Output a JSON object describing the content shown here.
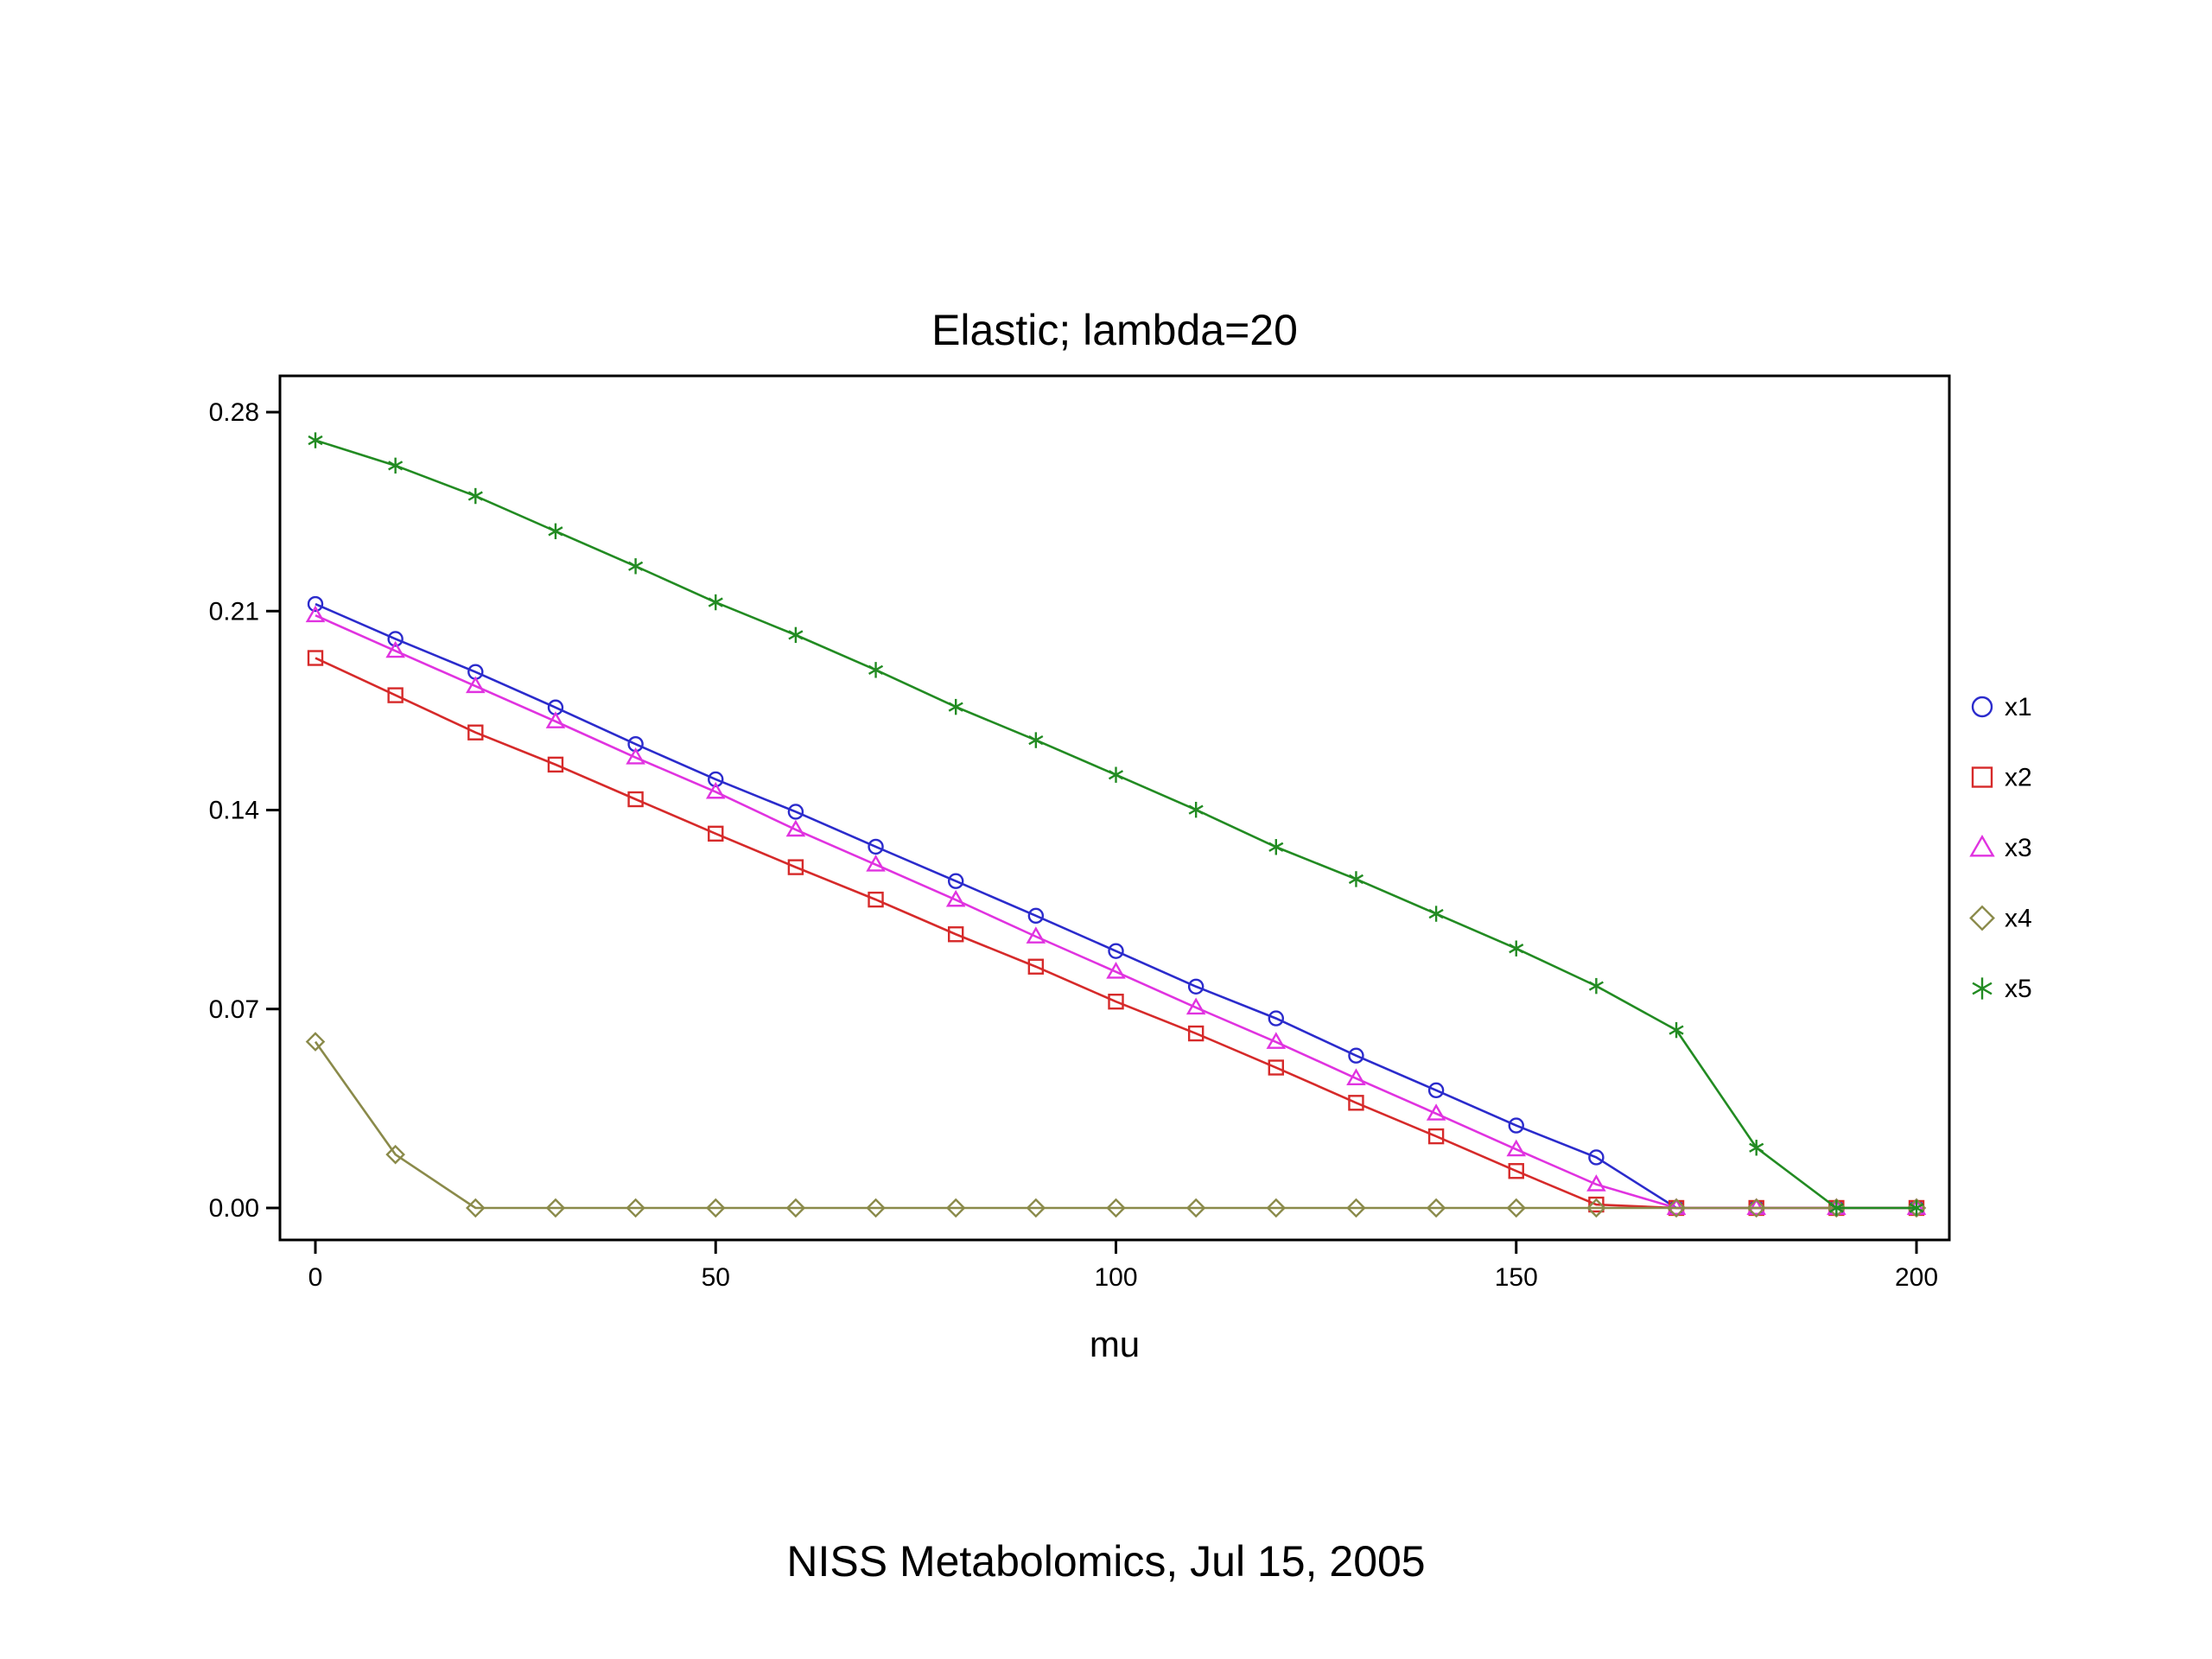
{
  "footer": {
    "text": "NISS Metabolomics, Jul 15, 2005"
  },
  "chart_data": {
    "type": "line",
    "title": "Elastic; lambda=20",
    "xlabel": "mu",
    "ylabel": "",
    "xlim": [
      0,
      200
    ],
    "ylim": [
      0,
      0.28
    ],
    "xticks": [
      0,
      50,
      100,
      150,
      200
    ],
    "xtick_labels": [
      "0",
      "50",
      "100",
      "150",
      "200"
    ],
    "yticks": [
      0.0,
      0.07,
      0.14,
      0.21,
      0.28
    ],
    "ytick_labels": [
      "0.00",
      "0.07",
      "0.14",
      "0.21",
      "0.28"
    ],
    "grid": false,
    "legend_position": "right",
    "x": [
      0,
      10,
      20,
      30,
      40,
      50,
      60,
      70,
      80,
      90,
      100,
      110,
      120,
      130,
      140,
      150,
      160,
      170,
      180,
      190,
      200
    ],
    "series": [
      {
        "name": "x1",
        "color": "#2b2bcc",
        "marker": "circle",
        "values": [
          0.2125,
          0.2002,
          0.1886,
          0.1761,
          0.1632,
          0.1508,
          0.1394,
          0.1271,
          0.115,
          0.1028,
          0.0904,
          0.0779,
          0.0667,
          0.0536,
          0.0414,
          0.029,
          0.0178,
          0.0,
          0.0,
          0.0,
          0.0
        ]
      },
      {
        "name": "x2",
        "color": "#d62a2a",
        "marker": "square",
        "values": [
          0.1935,
          0.1804,
          0.1673,
          0.156,
          0.1438,
          0.1317,
          0.1199,
          0.1085,
          0.0963,
          0.0849,
          0.0726,
          0.0614,
          0.0494,
          0.037,
          0.0252,
          0.013,
          0.0012,
          0.0,
          0.0,
          0.0,
          0.0
        ]
      },
      {
        "name": "x3",
        "color": "#e033e0",
        "marker": "triangle",
        "values": [
          0.2085,
          0.196,
          0.1836,
          0.1712,
          0.1585,
          0.1464,
          0.1331,
          0.1208,
          0.1084,
          0.0955,
          0.0831,
          0.0705,
          0.0584,
          0.0456,
          0.0332,
          0.0206,
          0.0083,
          0.0,
          0.0,
          0.0,
          0.0
        ]
      },
      {
        "name": "x4",
        "color": "#8a8a4a",
        "marker": "diamond",
        "values": [
          0.0585,
          0.0188,
          0.0,
          0.0,
          0.0,
          0.0,
          0.0,
          0.0,
          0.0,
          0.0,
          0.0,
          0.0,
          0.0,
          0.0,
          0.0,
          0.0,
          0.0,
          0.0,
          0.0,
          0.0,
          0.0
        ]
      },
      {
        "name": "x5",
        "color": "#228b22",
        "marker": "star",
        "values": [
          0.2701,
          0.2612,
          0.2505,
          0.2381,
          0.2258,
          0.2131,
          0.2016,
          0.1893,
          0.1763,
          0.1646,
          0.1524,
          0.1401,
          0.127,
          0.1157,
          0.1035,
          0.0913,
          0.0781,
          0.0626,
          0.0212,
          0.0,
          0.0
        ]
      }
    ]
  }
}
